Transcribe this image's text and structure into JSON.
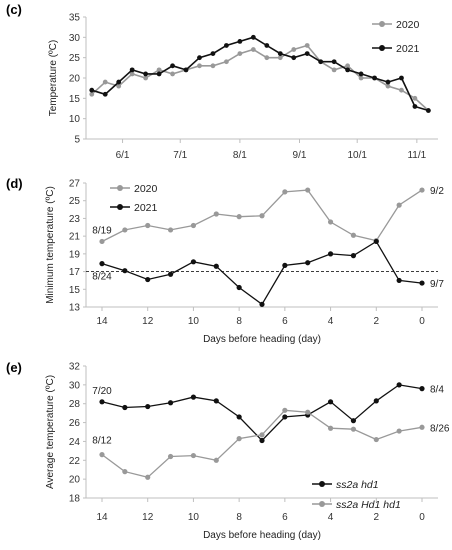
{
  "colors": {
    "black": "#111111",
    "gray": "#999999",
    "axis": "#bfbfbf"
  },
  "chart_data": [
    {
      "panel": "(c)",
      "type": "line",
      "ylabel": "Temperature (ºC)",
      "xlabel": "",
      "ylim": [
        5,
        35
      ],
      "yticks": [
        5,
        10,
        15,
        20,
        25,
        30,
        35
      ],
      "x_tick_labels": [
        "6/1",
        "7/1",
        "8/1",
        "9/1",
        "10/1",
        "11/1"
      ],
      "x_tick_dates": [
        "2020-06-01",
        "2020-07-01",
        "2020-08-01",
        "2020-09-01",
        "2020-10-01",
        "2020-11-01"
      ],
      "x_range": [
        "2020-05-13",
        "2020-11-12"
      ],
      "legend_position": "top-right",
      "series": [
        {
          "name": "2020",
          "color": "gray",
          "x": [
            "2020-05-16",
            "2020-05-23",
            "2020-05-30",
            "2020-06-06",
            "2020-06-13",
            "2020-06-20",
            "2020-06-27",
            "2020-07-04",
            "2020-07-11",
            "2020-07-18",
            "2020-07-25",
            "2020-08-01",
            "2020-08-08",
            "2020-08-15",
            "2020-08-22",
            "2020-08-29",
            "2020-09-05",
            "2020-09-12",
            "2020-09-19",
            "2020-09-26",
            "2020-10-03",
            "2020-10-10",
            "2020-10-17",
            "2020-10-24",
            "2020-10-31",
            "2020-11-07"
          ],
          "y": [
            16,
            19,
            18,
            21,
            20,
            22,
            21,
            22,
            23,
            23,
            24,
            26,
            27,
            25,
            25,
            27,
            28,
            24,
            22,
            23,
            20,
            20,
            18,
            17,
            15,
            12
          ]
        },
        {
          "name": "2021",
          "color": "black",
          "x": [
            "2020-05-16",
            "2020-05-23",
            "2020-05-30",
            "2020-06-06",
            "2020-06-13",
            "2020-06-20",
            "2020-06-27",
            "2020-07-04",
            "2020-07-11",
            "2020-07-18",
            "2020-07-25",
            "2020-08-01",
            "2020-08-08",
            "2020-08-15",
            "2020-08-22",
            "2020-08-29",
            "2020-09-05",
            "2020-09-12",
            "2020-09-19",
            "2020-09-26",
            "2020-10-03",
            "2020-10-10",
            "2020-10-17",
            "2020-10-24",
            "2020-10-31",
            "2020-11-07"
          ],
          "y": [
            17,
            16,
            19,
            22,
            21,
            21,
            23,
            22,
            25,
            26,
            28,
            29,
            30,
            28,
            26,
            25,
            26,
            24,
            24,
            22,
            21,
            20,
            19,
            20,
            13,
            12
          ]
        }
      ]
    },
    {
      "panel": "(d)",
      "type": "line",
      "ylabel": "Minimum temperature (ºC)",
      "xlabel": "Days before heading (day)",
      "ylim": [
        13,
        27
      ],
      "yticks": [
        13,
        15,
        17,
        19,
        21,
        23,
        25,
        27
      ],
      "xlim": [
        14.7,
        -0.7
      ],
      "xticks": [
        14,
        12,
        10,
        8,
        6,
        4,
        2,
        0
      ],
      "legend_position": "top-left",
      "reference_line_y": 17,
      "annotations": [
        {
          "text": "8/19",
          "series": "2020",
          "end": "start"
        },
        {
          "text": "8/24",
          "series": "2021",
          "end": "start"
        },
        {
          "text": "9/2",
          "series": "2020",
          "end": "end"
        },
        {
          "text": "9/7",
          "series": "2021",
          "end": "end"
        }
      ],
      "series": [
        {
          "name": "2020",
          "color": "gray",
          "x": [
            14,
            13,
            12,
            11,
            10,
            9,
            8,
            7,
            6,
            5,
            4,
            3,
            2,
            1,
            0
          ],
          "y": [
            20.4,
            21.7,
            22.2,
            21.7,
            22.2,
            23.5,
            23.2,
            23.3,
            26.0,
            26.2,
            22.6,
            21.1,
            20.5,
            24.5,
            26.2
          ]
        },
        {
          "name": "2021",
          "color": "black",
          "x": [
            14,
            13,
            12,
            11,
            10,
            9,
            8,
            7,
            6,
            5,
            4,
            3,
            2,
            1,
            0
          ],
          "y": [
            17.9,
            17.1,
            16.1,
            16.7,
            18.1,
            17.6,
            15.2,
            13.3,
            17.7,
            18.0,
            19.0,
            18.8,
            20.4,
            16.0,
            15.7
          ]
        }
      ]
    },
    {
      "panel": "(e)",
      "type": "line",
      "ylabel": "Average temperature (ºC)",
      "xlabel": "Days before heading (day)",
      "ylim": [
        18,
        32
      ],
      "yticks": [
        18,
        20,
        22,
        24,
        26,
        28,
        30,
        32
      ],
      "xlim": [
        14.7,
        -0.7
      ],
      "xticks": [
        14,
        12,
        10,
        8,
        6,
        4,
        2,
        0
      ],
      "legend_position": "bottom-right",
      "annotations": [
        {
          "text": "7/20",
          "series": "ss2a hd1",
          "end": "start"
        },
        {
          "text": "8/12",
          "series": "ss2a Hd1 hd1",
          "end": "start"
        },
        {
          "text": "8/4",
          "series": "ss2a hd1",
          "end": "end"
        },
        {
          "text": "8/26",
          "series": "ss2a Hd1 hd1",
          "end": "end"
        }
      ],
      "series": [
        {
          "name": "ss2a hd1",
          "color": "black",
          "x": [
            14,
            13,
            12,
            11,
            10,
            9,
            8,
            7,
            6,
            5,
            4,
            3,
            2,
            1,
            0
          ],
          "y": [
            28.2,
            27.6,
            27.7,
            28.1,
            28.7,
            28.3,
            26.6,
            24.1,
            26.6,
            26.8,
            28.2,
            26.2,
            28.3,
            30.0,
            29.6
          ]
        },
        {
          "name": "ss2a Hd1 hd1",
          "color": "gray",
          "x": [
            14,
            13,
            12,
            11,
            10,
            9,
            8,
            7,
            6,
            5,
            4,
            3,
            2,
            1,
            0
          ],
          "y": [
            22.6,
            20.8,
            20.2,
            22.4,
            22.5,
            22.0,
            24.3,
            24.7,
            27.3,
            27.1,
            25.4,
            25.3,
            24.2,
            25.1,
            25.5
          ]
        }
      ]
    }
  ]
}
